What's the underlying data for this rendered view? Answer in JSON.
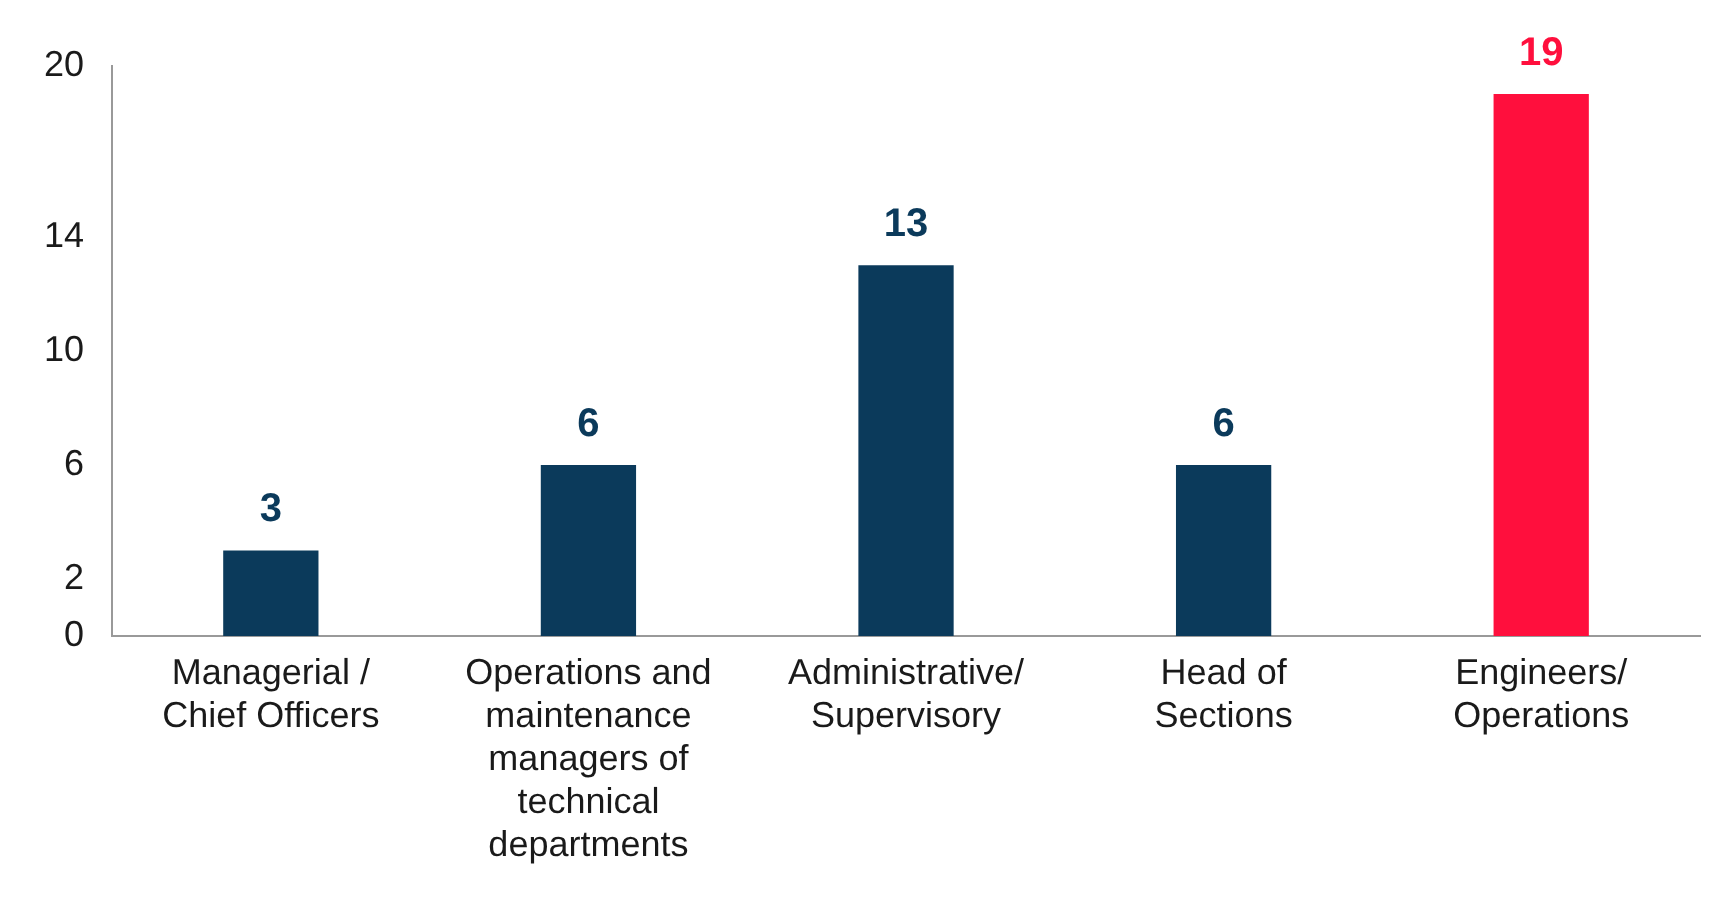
{
  "chart_data": {
    "type": "bar",
    "categories": [
      "Managerial / Chief Officers",
      "Operations and maintenance managers of technical departments",
      "Administrative/ Supervisory",
      "Head of Sections",
      "Engineers/ Operations"
    ],
    "values": [
      3,
      6,
      13,
      6,
      19
    ],
    "colors": [
      "#0b3a5b",
      "#0b3a5b",
      "#0b3a5b",
      "#0b3a5b",
      "#ff0f3d"
    ],
    "ylim": [
      0,
      20
    ],
    "yticks": [
      0,
      2,
      6,
      10,
      14,
      20
    ],
    "grid": false,
    "legend": false,
    "data_labels": true
  }
}
